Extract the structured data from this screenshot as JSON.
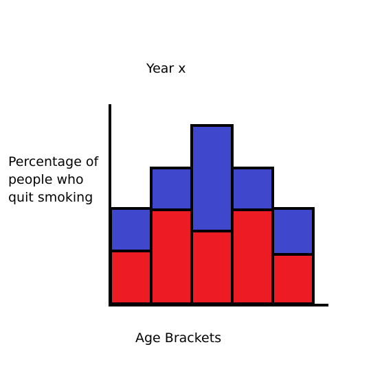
{
  "chart_data": {
    "type": "bar",
    "stacked": true,
    "title": "Year x",
    "xlabel": "Age Brackets",
    "ylabel": "Percentage of people who quit smoking",
    "categories": [
      "",
      "",
      "",
      "",
      ""
    ],
    "series": [
      {
        "values": [
          77,
          137,
          106,
          137,
          72
        ]
      },
      {
        "values": [
          62,
          61,
          154,
          61,
          67
        ]
      }
    ],
    "ylim": [
      0,
      290
    ],
    "colors": [
      "#ed1c24",
      "#3f48cc"
    ],
    "grid": false,
    "legend": "none"
  }
}
